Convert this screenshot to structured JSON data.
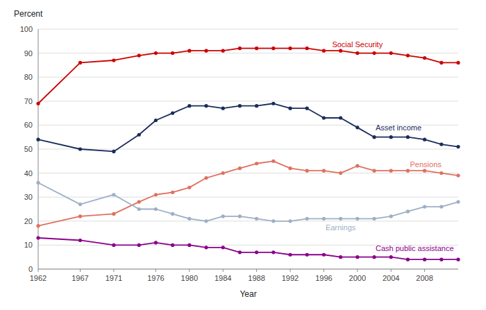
{
  "chart_data": {
    "type": "line",
    "x_label": "Year",
    "y_label": "Percent",
    "x": [
      1962,
      1967,
      1971,
      1974,
      1976,
      1978,
      1980,
      1982,
      1984,
      1986,
      1988,
      1990,
      1992,
      1994,
      1996,
      1998,
      2000,
      2002,
      2004,
      2006,
      2008,
      2010,
      2012
    ],
    "series": [
      {
        "name": "Social Security",
        "color": "#cc0000",
        "values": [
          69,
          86,
          87,
          89,
          90,
          90,
          91,
          91,
          91,
          92,
          92,
          92,
          92,
          92,
          91,
          91,
          90,
          90,
          90,
          89,
          88,
          86,
          86
        ]
      },
      {
        "name": "Asset income",
        "color": "#1a2d5a",
        "values": [
          54,
          50,
          49,
          56,
          62,
          65,
          68,
          68,
          67,
          68,
          68,
          69,
          67,
          67,
          63,
          63,
          59,
          55,
          55,
          55,
          54,
          52,
          51
        ]
      },
      {
        "name": "Pensions",
        "color": "#e07060",
        "values": [
          18,
          22,
          23,
          28,
          31,
          32,
          34,
          38,
          40,
          42,
          44,
          45,
          42,
          41,
          41,
          40,
          43,
          41,
          41,
          41,
          41,
          40,
          39
        ]
      },
      {
        "name": "Earnings",
        "color": "#9dafc5",
        "values": [
          36,
          27,
          31,
          25,
          25,
          23,
          21,
          20,
          22,
          22,
          21,
          20,
          20,
          21,
          21,
          21,
          21,
          21,
          22,
          24,
          26,
          26,
          28
        ]
      },
      {
        "name": "Cash public assistance",
        "color": "#8B008B",
        "values": [
          13,
          12,
          10,
          10,
          11,
          10,
          10,
          9,
          9,
          7,
          7,
          7,
          6,
          6,
          6,
          5,
          5,
          5,
          5,
          4,
          4,
          4,
          4
        ]
      }
    ],
    "xlim": [
      1962,
      2012
    ],
    "xticks": [
      1962,
      1967,
      1971,
      1976,
      1980,
      1984,
      1988,
      1992,
      1996,
      2000,
      2004,
      2008
    ],
    "ylim": [
      0,
      100
    ],
    "yticks": [
      0,
      10,
      20,
      30,
      40,
      50,
      60,
      70,
      80,
      90,
      100
    ],
    "grid": true,
    "marker": "circle"
  }
}
